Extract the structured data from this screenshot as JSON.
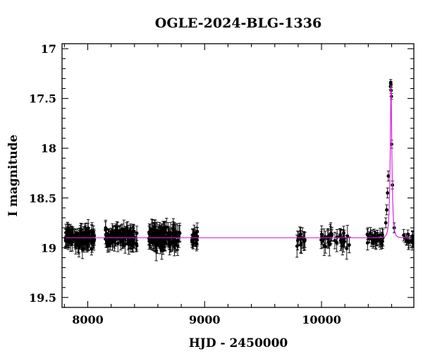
{
  "chart_data": {
    "type": "scatter",
    "title": "OGLE-2024-BLG-1336",
    "xlabel": "HJD - 2450000",
    "ylabel": "I magnitude",
    "xlim": [
      7780,
      10790
    ],
    "ylim": [
      19.6,
      16.95
    ],
    "y_inverted": true,
    "x_ticks": [
      8000,
      9000,
      10000
    ],
    "x_tick_labels": [
      "8000",
      "9000",
      "10000"
    ],
    "y_ticks": [
      17,
      17.5,
      18,
      18.5,
      19,
      19.5
    ],
    "y_tick_labels": [
      "17",
      "17.5",
      "18",
      "18.5",
      "19",
      "19.5"
    ],
    "grid": false,
    "legend": "none",
    "colors": {
      "points": "#000000",
      "model": "#dd22dd"
    },
    "model": {
      "name": "",
      "baseline_mag": 18.9,
      "peak_mag": 17.33,
      "t0": 10595,
      "tE": 16
    },
    "observing_seasons": [
      {
        "start": 7810,
        "end": 8060,
        "mean_mag": 18.9,
        "scatter": 0.06,
        "error": 0.07,
        "count": 120
      },
      {
        "start": 8150,
        "end": 8420,
        "mean_mag": 18.89,
        "scatter": 0.06,
        "error": 0.07,
        "count": 110
      },
      {
        "start": 8520,
        "end": 8790,
        "mean_mag": 18.9,
        "scatter": 0.07,
        "error": 0.08,
        "count": 140
      },
      {
        "start": 8890,
        "end": 8940,
        "mean_mag": 18.91,
        "scatter": 0.05,
        "error": 0.07,
        "count": 22
      },
      {
        "start": 9780,
        "end": 9860,
        "mean_mag": 18.92,
        "scatter": 0.06,
        "error": 0.08,
        "count": 14
      },
      {
        "start": 9990,
        "end": 10250,
        "mean_mag": 18.92,
        "scatter": 0.06,
        "error": 0.08,
        "count": 35
      },
      {
        "start": 10390,
        "end": 10540,
        "mean_mag": 18.9,
        "scatter": 0.04,
        "error": 0.06,
        "count": 30
      },
      {
        "start": 10700,
        "end": 10790,
        "mean_mag": 18.93,
        "scatter": 0.04,
        "error": 0.06,
        "count": 14
      }
    ],
    "event_points": [
      {
        "x": 10550,
        "y": 18.75,
        "err": 0.05
      },
      {
        "x": 10558,
        "y": 18.62,
        "err": 0.05
      },
      {
        "x": 10565,
        "y": 18.45,
        "err": 0.05
      },
      {
        "x": 10572,
        "y": 18.28,
        "err": 0.05
      },
      {
        "x": 10590,
        "y": 17.38,
        "err": 0.03
      },
      {
        "x": 10592,
        "y": 17.34,
        "err": 0.03
      },
      {
        "x": 10594,
        "y": 17.36,
        "err": 0.03
      },
      {
        "x": 10596,
        "y": 17.42,
        "err": 0.03
      },
      {
        "x": 10598,
        "y": 17.48,
        "err": 0.03
      },
      {
        "x": 10600,
        "y": 17.96,
        "err": 0.04
      },
      {
        "x": 10607,
        "y": 18.37,
        "err": 0.04
      },
      {
        "x": 10622,
        "y": 18.8,
        "err": 0.05
      }
    ]
  }
}
